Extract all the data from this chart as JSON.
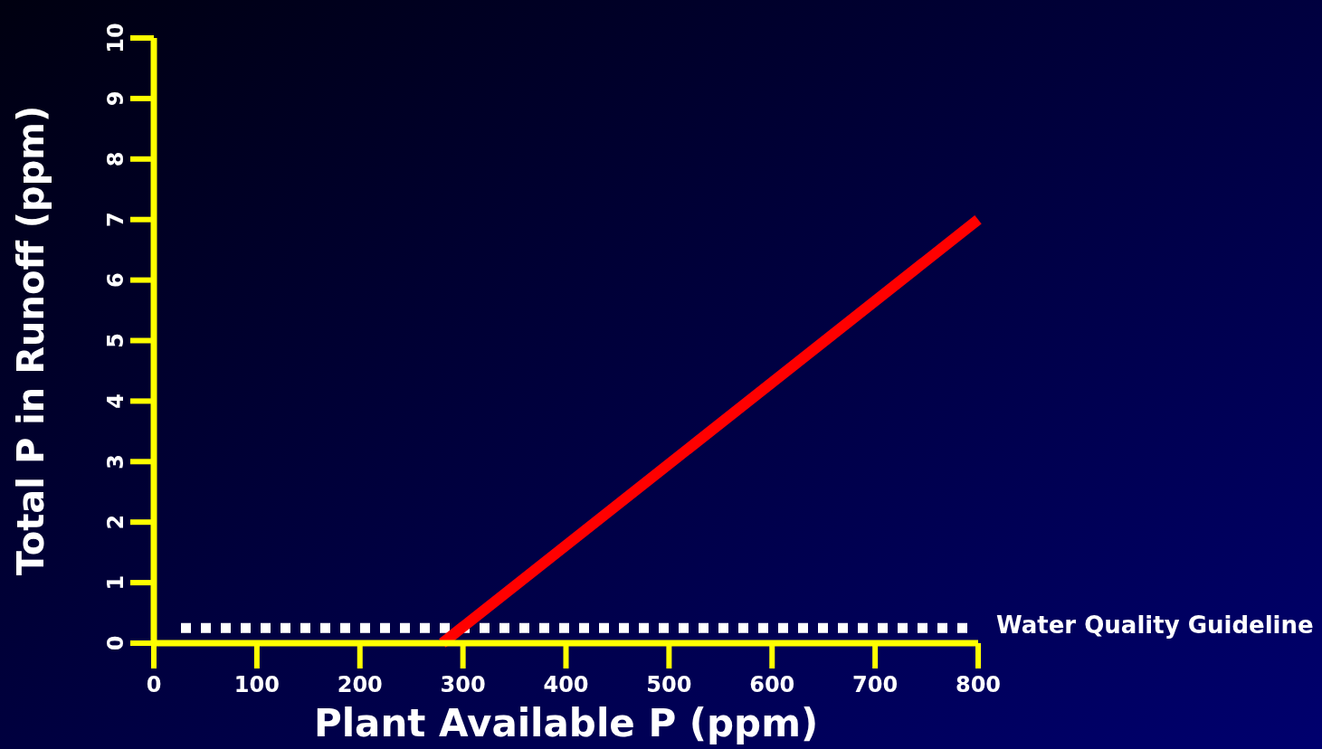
{
  "chart_data": {
    "type": "line",
    "xlabel": "Plant Available P (ppm)",
    "ylabel": "Total P in Runoff (ppm)",
    "x": [
      280,
      800
    ],
    "series": [
      {
        "color": "#ff0000",
        "values": [
          0,
          7
        ]
      }
    ],
    "xlim": [
      0,
      800
    ],
    "xticks": [
      0,
      100,
      200,
      300,
      400,
      500,
      600,
      700,
      800
    ],
    "ylim": [
      0,
      10
    ],
    "yticks": [
      0,
      1,
      2,
      3,
      4,
      5,
      6,
      7,
      8,
      9,
      10
    ],
    "ref_lines": [
      {
        "axis": "y",
        "value": 0.25,
        "label": "Water Quality Guideline",
        "color": "#ffffff",
        "line_style": "dotted"
      }
    ],
    "grid": false,
    "marker": "none",
    "line_style": "solid"
  }
}
